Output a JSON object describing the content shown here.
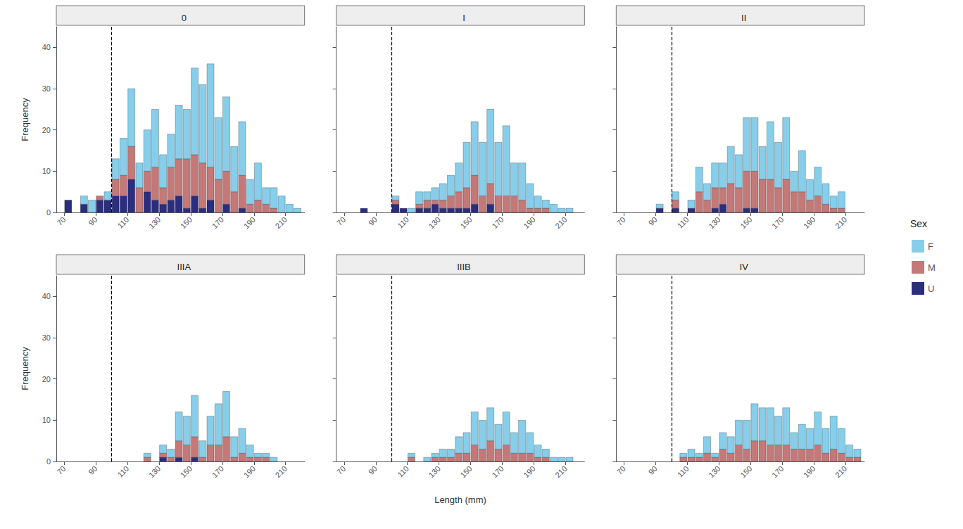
{
  "chart_data": [
    {
      "type": "histogram",
      "title": "0",
      "bins": [
        70,
        75,
        80,
        85,
        90,
        95,
        100,
        105,
        110,
        115,
        120,
        125,
        130,
        135,
        140,
        145,
        150,
        155,
        160,
        165,
        170,
        175,
        180,
        185,
        190,
        195,
        200,
        205,
        210,
        215,
        220
      ],
      "series": [
        {
          "name": "U",
          "color": "#2B2D7E",
          "values": [
            3,
            0,
            2,
            0,
            3,
            3,
            4,
            4,
            8,
            0,
            5,
            3,
            2,
            3,
            4,
            1,
            4,
            1,
            3,
            0,
            2,
            0,
            1,
            0,
            0,
            0,
            0,
            0,
            0,
            0
          ]
        },
        {
          "name": "M",
          "color": "#C47878",
          "values": [
            0,
            0,
            0,
            0,
            1,
            0,
            4,
            5,
            8,
            6,
            5,
            8,
            4,
            8,
            9,
            12,
            10,
            11,
            8,
            8,
            8,
            5,
            8,
            2,
            3,
            2,
            1,
            0,
            0,
            0
          ]
        },
        {
          "name": "F",
          "color": "#87CEEB",
          "values": [
            0,
            0,
            2,
            3,
            0,
            2,
            5,
            9,
            14,
            6,
            10,
            14,
            8,
            8,
            13,
            12,
            21,
            19,
            25,
            15,
            18,
            11,
            13,
            6,
            9,
            4,
            5,
            4,
            2,
            1
          ]
        }
      ],
      "stacked": true,
      "xlim": [
        65,
        222
      ],
      "ylim": [
        0,
        45
      ],
      "xticks": [
        70,
        90,
        110,
        130,
        150,
        170,
        190,
        210
      ],
      "yticks": [
        0,
        10,
        20,
        30,
        40
      ],
      "grid": false,
      "ylabel": "Frequency",
      "vlines": [
        {
          "x": 100,
          "color": "#000000",
          "line_style": "dashed"
        }
      ]
    },
    {
      "type": "histogram",
      "title": "I",
      "bins": [
        70,
        75,
        80,
        85,
        90,
        95,
        100,
        105,
        110,
        115,
        120,
        125,
        130,
        135,
        140,
        145,
        150,
        155,
        160,
        165,
        170,
        175,
        180,
        185,
        190,
        195,
        200,
        205,
        210,
        215,
        220
      ],
      "series": [
        {
          "name": "U",
          "color": "#2B2D7E",
          "values": [
            0,
            0,
            1,
            0,
            0,
            0,
            2,
            1,
            0,
            1,
            1,
            2,
            1,
            1,
            1,
            1,
            2,
            0,
            2,
            0,
            0,
            0,
            0,
            0,
            0,
            0,
            0,
            0,
            0,
            0
          ]
        },
        {
          "name": "M",
          "color": "#C47878",
          "values": [
            0,
            0,
            0,
            0,
            0,
            0,
            1,
            0,
            0,
            1,
            2,
            1,
            2,
            3,
            4,
            5,
            7,
            4,
            5,
            4,
            4,
            4,
            3,
            1,
            1,
            1,
            0,
            0,
            0,
            0
          ]
        },
        {
          "name": "F",
          "color": "#87CEEB",
          "values": [
            0,
            0,
            0,
            0,
            0,
            0,
            1,
            0,
            1,
            3,
            2,
            3,
            4,
            5,
            7,
            11,
            13,
            13,
            18,
            13,
            17,
            8,
            9,
            6,
            3,
            2,
            2,
            1,
            1,
            0
          ]
        }
      ],
      "stacked": true,
      "xlim": [
        65,
        222
      ],
      "ylim": [
        0,
        45
      ],
      "xticks": [
        70,
        90,
        110,
        130,
        150,
        170,
        190,
        210
      ],
      "yticks": [
        0,
        10,
        20,
        30,
        40
      ],
      "grid": false,
      "tick_labels": "x",
      "vlines": [
        {
          "x": 100,
          "color": "#000000",
          "line_style": "dashed"
        }
      ]
    },
    {
      "type": "histogram",
      "title": "II",
      "bins": [
        70,
        75,
        80,
        85,
        90,
        95,
        100,
        105,
        110,
        115,
        120,
        125,
        130,
        135,
        140,
        145,
        150,
        155,
        160,
        165,
        170,
        175,
        180,
        185,
        190,
        195,
        200,
        205,
        210,
        215,
        220
      ],
      "series": [
        {
          "name": "U",
          "color": "#2B2D7E",
          "values": [
            0,
            0,
            0,
            0,
            1,
            0,
            1,
            0,
            1,
            0,
            0,
            1,
            2,
            0,
            0,
            1,
            1,
            0,
            0,
            0,
            0,
            0,
            0,
            0,
            0,
            0,
            0,
            0,
            0,
            0
          ]
        },
        {
          "name": "M",
          "color": "#C47878",
          "values": [
            0,
            0,
            0,
            0,
            0,
            0,
            2,
            0,
            0,
            5,
            3,
            5,
            4,
            7,
            6,
            9,
            9,
            8,
            8,
            6,
            8,
            5,
            5,
            3,
            4,
            2,
            1,
            1,
            0,
            0
          ]
        },
        {
          "name": "F",
          "color": "#87CEEB",
          "values": [
            0,
            0,
            0,
            0,
            1,
            0,
            2,
            0,
            2,
            6,
            4,
            6,
            6,
            9,
            8,
            13,
            13,
            8,
            14,
            11,
            15,
            5,
            10,
            5,
            7,
            5,
            3,
            4,
            0,
            0
          ]
        }
      ],
      "stacked": true,
      "xlim": [
        65,
        222
      ],
      "ylim": [
        0,
        45
      ],
      "xticks": [
        70,
        90,
        110,
        130,
        150,
        170,
        190,
        210
      ],
      "yticks": [
        0,
        10,
        20,
        30,
        40
      ],
      "grid": false,
      "tick_labels": "x",
      "vlines": [
        {
          "x": 100,
          "color": "#000000",
          "line_style": "dashed"
        }
      ]
    },
    {
      "type": "histogram",
      "title": "IIIA",
      "bins": [
        70,
        75,
        80,
        85,
        90,
        95,
        100,
        105,
        110,
        115,
        120,
        125,
        130,
        135,
        140,
        145,
        150,
        155,
        160,
        165,
        170,
        175,
        180,
        185,
        190,
        195,
        200,
        205,
        210,
        215,
        220
      ],
      "series": [
        {
          "name": "U",
          "color": "#2B2D7E",
          "values": [
            0,
            0,
            0,
            0,
            0,
            0,
            0,
            0,
            0,
            0,
            0,
            0,
            1,
            0,
            1,
            0,
            1,
            0,
            0,
            0,
            0,
            0,
            0,
            0,
            0,
            0,
            0,
            0,
            0,
            0
          ]
        },
        {
          "name": "M",
          "color": "#C47878",
          "values": [
            0,
            0,
            0,
            0,
            0,
            0,
            0,
            0,
            0,
            0,
            1,
            0,
            1,
            1,
            4,
            4,
            5,
            1,
            4,
            4,
            6,
            1,
            2,
            1,
            1,
            1,
            0,
            0,
            0,
            0
          ]
        },
        {
          "name": "F",
          "color": "#87CEEB",
          "values": [
            0,
            0,
            0,
            0,
            0,
            0,
            0,
            0,
            0,
            0,
            1,
            0,
            2,
            2,
            7,
            7,
            10,
            4,
            7,
            10,
            11,
            5,
            6,
            3,
            1,
            1,
            1,
            0,
            0,
            0
          ]
        }
      ],
      "stacked": true,
      "xlim": [
        65,
        222
      ],
      "ylim": [
        0,
        45
      ],
      "xticks": [
        70,
        90,
        110,
        130,
        150,
        170,
        190,
        210
      ],
      "yticks": [
        0,
        10,
        20,
        30,
        40
      ],
      "grid": false,
      "ylabel": "Frequency",
      "vlines": [
        {
          "x": 100,
          "color": "#000000",
          "line_style": "dashed"
        }
      ]
    },
    {
      "type": "histogram",
      "title": "IIIB",
      "bins": [
        70,
        75,
        80,
        85,
        90,
        95,
        100,
        105,
        110,
        115,
        120,
        125,
        130,
        135,
        140,
        145,
        150,
        155,
        160,
        165,
        170,
        175,
        180,
        185,
        190,
        195,
        200,
        205,
        210,
        215,
        220
      ],
      "series": [
        {
          "name": "U",
          "color": "#2B2D7E",
          "values": [
            0,
            0,
            0,
            0,
            0,
            0,
            0,
            0,
            0,
            0,
            0,
            0,
            0,
            0,
            0,
            0,
            0,
            0,
            0,
            0,
            0,
            0,
            0,
            0,
            0,
            0,
            0,
            0,
            0,
            0
          ]
        },
        {
          "name": "M",
          "color": "#C47878",
          "values": [
            0,
            0,
            0,
            0,
            0,
            0,
            0,
            0,
            1,
            0,
            0,
            1,
            1,
            1,
            2,
            2,
            4,
            3,
            5,
            3,
            4,
            2,
            2,
            2,
            1,
            1,
            0,
            0,
            0,
            0
          ]
        },
        {
          "name": "F",
          "color": "#87CEEB",
          "values": [
            0,
            0,
            0,
            0,
            0,
            0,
            0,
            0,
            1,
            0,
            1,
            1,
            2,
            2,
            4,
            5,
            8,
            7,
            8,
            6,
            8,
            5,
            8,
            5,
            3,
            2,
            1,
            1,
            1,
            0
          ]
        }
      ],
      "stacked": true,
      "xlim": [
        65,
        222
      ],
      "ylim": [
        0,
        45
      ],
      "xticks": [
        70,
        90,
        110,
        130,
        150,
        170,
        190,
        210
      ],
      "yticks": [
        0,
        10,
        20,
        30,
        40
      ],
      "grid": false,
      "tick_labels": "x",
      "xlabel": "Length (mm)",
      "vlines": [
        {
          "x": 100,
          "color": "#000000",
          "line_style": "dashed"
        }
      ]
    },
    {
      "type": "histogram",
      "title": "IV",
      "bins": [
        70,
        75,
        80,
        85,
        90,
        95,
        100,
        105,
        110,
        115,
        120,
        125,
        130,
        135,
        140,
        145,
        150,
        155,
        160,
        165,
        170,
        175,
        180,
        185,
        190,
        195,
        200,
        205,
        210,
        215,
        220
      ],
      "series": [
        {
          "name": "U",
          "color": "#2B2D7E",
          "values": [
            0,
            0,
            0,
            0,
            0,
            0,
            0,
            0,
            0,
            0,
            0,
            0,
            0,
            0,
            0,
            0,
            0,
            0,
            0,
            0,
            0,
            0,
            0,
            0,
            0,
            0,
            0,
            0,
            0,
            0
          ]
        },
        {
          "name": "M",
          "color": "#C47878",
          "values": [
            0,
            0,
            0,
            0,
            0,
            0,
            0,
            1,
            1,
            1,
            2,
            1,
            3,
            2,
            4,
            3,
            5,
            5,
            4,
            4,
            4,
            3,
            3,
            3,
            4,
            2,
            3,
            2,
            1,
            1
          ]
        },
        {
          "name": "F",
          "color": "#87CEEB",
          "values": [
            0,
            0,
            0,
            0,
            0,
            0,
            0,
            1,
            2,
            1,
            4,
            1,
            4,
            4,
            6,
            7,
            9,
            8,
            9,
            7,
            9,
            4,
            6,
            5,
            8,
            6,
            8,
            6,
            3,
            2
          ]
        }
      ],
      "stacked": true,
      "xlim": [
        65,
        222
      ],
      "ylim": [
        0,
        45
      ],
      "xticks": [
        70,
        90,
        110,
        130,
        150,
        170,
        190,
        210
      ],
      "yticks": [
        0,
        10,
        20,
        30,
        40
      ],
      "grid": false,
      "tick_labels": "x",
      "vlines": [
        {
          "x": 100,
          "color": "#000000",
          "line_style": "dashed"
        }
      ]
    }
  ],
  "legend": "right",
  "legend_title": "Sex"
}
